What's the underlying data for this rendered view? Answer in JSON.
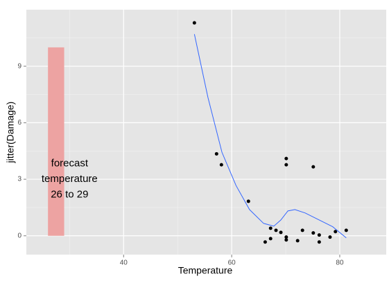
{
  "chart_data": {
    "type": "scatter",
    "x_label": "Temperature",
    "y_label": "jitter(Damage)",
    "xlim": [
      22,
      88.6
    ],
    "ylim": [
      -1,
      12
    ],
    "xticks": [
      40,
      60,
      80
    ],
    "yticks": [
      0,
      3,
      6,
      9
    ],
    "xminor": [
      30,
      50,
      70
    ],
    "yminor": [
      1.5,
      4.5,
      7.5,
      10.5
    ],
    "grid": true,
    "points": {
      "color": "#000000",
      "x": [
        53.1,
        57.2,
        58.1,
        63.1,
        70.1,
        70.1,
        75.1,
        66.2,
        67.2,
        67.2,
        68.2,
        69.1,
        70.1,
        70.1,
        72.2,
        73.1,
        75.1,
        76.2,
        76.2,
        78.2,
        79.2,
        81.2
      ],
      "values": [
        11.3,
        4.35,
        3.77,
        1.83,
        4.1,
        3.77,
        3.66,
        -0.33,
        0.4,
        -0.15,
        0.29,
        0.18,
        -0.07,
        -0.22,
        -0.26,
        0.29,
        0.15,
        0.04,
        -0.33,
        -0.07,
        0.22,
        0.29
      ]
    },
    "smooth": {
      "color": "#3366ff",
      "x": [
        53.1,
        55.6,
        58.2,
        60.8,
        63.3,
        65.9,
        67.8,
        69.1,
        70.4,
        71.7,
        73.6,
        76.2,
        78.7,
        81.2
      ],
      "values": [
        10.7,
        7.35,
        4.43,
        2.67,
        1.39,
        0.66,
        0.51,
        0.84,
        1.32,
        1.39,
        1.21,
        0.84,
        0.48,
        -0.11
      ]
    },
    "forecast_band": {
      "color": "#eda3a2",
      "x": [
        26,
        29
      ],
      "values": [
        0,
        10
      ]
    },
    "annotation": {
      "x": 30,
      "y": 3,
      "lines": [
        "forecast",
        "temperature",
        "26 to 29"
      ]
    }
  }
}
